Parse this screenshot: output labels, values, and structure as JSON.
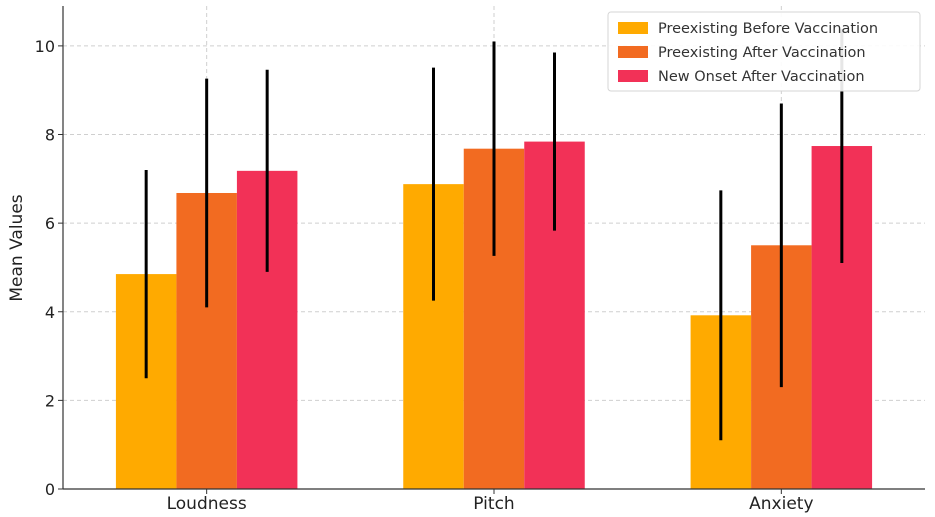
{
  "chart_data": {
    "type": "bar",
    "title": "",
    "xlabel": "",
    "ylabel": "Mean Values",
    "ylim": [
      0,
      10.9
    ],
    "yticks": [
      0,
      2,
      4,
      6,
      8,
      10
    ],
    "grid": true,
    "legend_position": "top-right",
    "categories": [
      "Loudness",
      "Pitch",
      "Anxiety"
    ],
    "series": [
      {
        "name": "Preexisting Before Vaccination",
        "color": "#FFAA00",
        "values": [
          4.85,
          6.88,
          3.92
        ],
        "errors": [
          2.35,
          2.63,
          2.82
        ]
      },
      {
        "name": "Preexisting After Vaccination",
        "color": "#F26B21",
        "values": [
          6.68,
          7.68,
          5.5
        ],
        "errors": [
          2.58,
          2.42,
          3.2
        ]
      },
      {
        "name": "New Onset After Vaccination",
        "color": "#F23157",
        "values": [
          7.18,
          7.84,
          7.74
        ],
        "errors": [
          2.28,
          2.01,
          2.64
        ]
      }
    ]
  }
}
